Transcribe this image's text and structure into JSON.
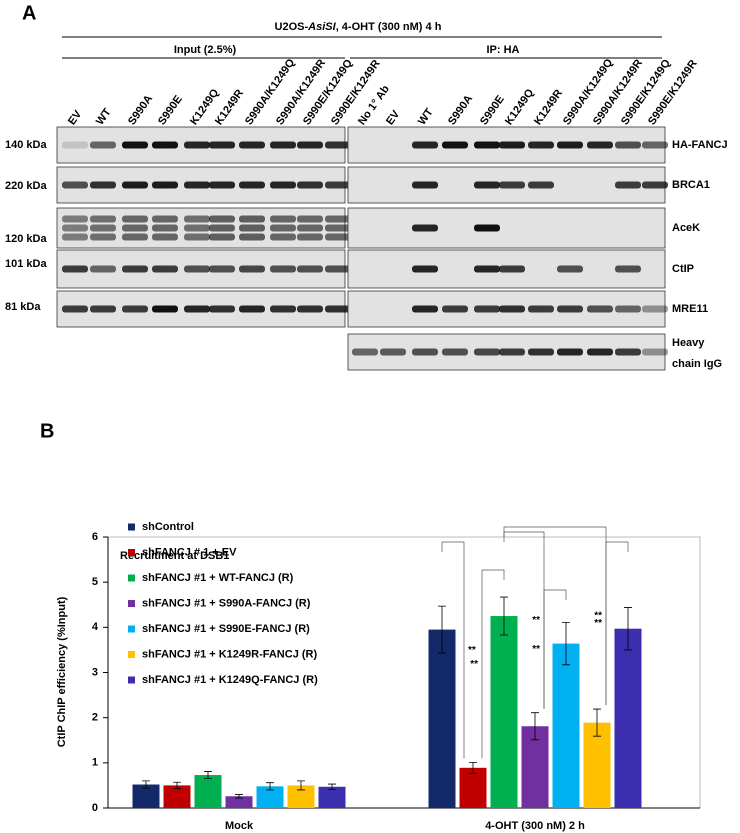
{
  "panel_a": {
    "label": "A",
    "header_parts": [
      "U2OS-",
      "AsiSI",
      ", 4-OHT  (300 nM) 4 h"
    ],
    "groups": [
      "Input (2.5%)",
      "IP: HA"
    ],
    "input_lanes": [
      "EV",
      "WT",
      "S990A",
      "S990E",
      "K1249Q",
      "K1249R",
      "S990A/K1249Q",
      "S990A/K1249R",
      "S990E/K1249Q",
      "S990E/K1249R"
    ],
    "ip_lanes": [
      "No 1° Ab",
      "EV",
      "WT",
      "S990A",
      "S990E",
      "K1249Q",
      "K1249R",
      "S990A/K1249Q",
      "S990A/K1249R",
      "S990E/K1249Q",
      "S990E/K1249R"
    ],
    "markers": [
      "140 kDa",
      "220 kDa",
      "120 kDa",
      "101 kDa",
      "81 kDa"
    ],
    "blots": [
      "HA-FANCJ",
      "BRCA1",
      "AceK",
      "CtIP",
      "MRE11"
    ],
    "igg_label": [
      "Heavy",
      "chain IgG"
    ]
  },
  "chart_data": {
    "type": "bar",
    "panel_label": "B",
    "annotation": "Recruitment at DSB1",
    "ylabel": "CtIP ChIP efficiency (%Input)",
    "categories": [
      "Mock",
      "4-OHT (300 nM) 2 h"
    ],
    "series": [
      {
        "name": "shControl",
        "color": "#14296a",
        "values": [
          0.52,
          3.95
        ],
        "errors": [
          0.08,
          0.52
        ]
      },
      {
        "name": "shFANCJ # 1  + EV",
        "color": "#c00000",
        "values": [
          0.5,
          0.89
        ],
        "errors": [
          0.07,
          0.12
        ]
      },
      {
        "name": "shFANCJ #1 + WT-FANCJ (R)",
        "color": "#00b050",
        "values": [
          0.73,
          4.25
        ],
        "errors": [
          0.08,
          0.42
        ]
      },
      {
        "name": "shFANCJ #1 + S990A-FANCJ (R)",
        "color": "#7030a0",
        "values": [
          0.26,
          1.81
        ],
        "errors": [
          0.04,
          0.3
        ]
      },
      {
        "name": "shFANCJ #1 + S990E-FANCJ (R)",
        "color": "#00b0f0",
        "values": [
          0.48,
          3.64
        ],
        "errors": [
          0.08,
          0.47
        ]
      },
      {
        "name": "shFANCJ #1 + K1249R-FANCJ (R)",
        "color": "#ffc000",
        "values": [
          0.5,
          1.89
        ],
        "errors": [
          0.1,
          0.3
        ]
      },
      {
        "name": "shFANCJ #1 + K1249Q-FANCJ (R)",
        "color": "#3b2fb0",
        "values": [
          0.47,
          3.97
        ],
        "errors": [
          0.06,
          0.47
        ]
      }
    ],
    "significance": [
      "**",
      "**",
      "**",
      "**",
      "**",
      "**"
    ],
    "ylim": [
      0,
      6
    ],
    "yticks": [
      0,
      1,
      2,
      3,
      4,
      5,
      6
    ],
    "grid": false
  }
}
